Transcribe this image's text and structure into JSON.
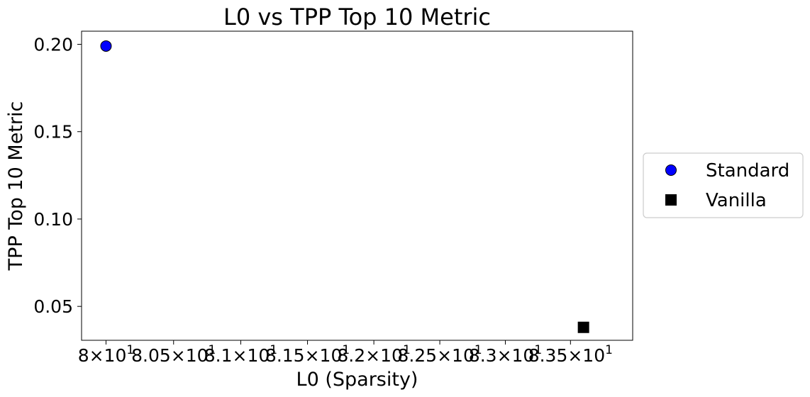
{
  "chart_data": {
    "type": "scatter",
    "title": "L0 vs TPP Top 10 Metric",
    "xlabel": "L0 (Sparsity)",
    "ylabel": "TPP Top 10 Metric",
    "xscale": "log",
    "xlim": [
      79.82,
      83.98
    ],
    "ylim": [
      0.0306,
      0.2075
    ],
    "grid": false,
    "legend_position": "outside-right",
    "x_ticks": [
      {
        "value": 80.0,
        "base": "8",
        "exp": "1"
      },
      {
        "value": 80.5,
        "base": "8.05",
        "exp": "1"
      },
      {
        "value": 81.0,
        "base": "8.1",
        "exp": "1"
      },
      {
        "value": 81.5,
        "base": "8.15",
        "exp": "1"
      },
      {
        "value": 82.0,
        "base": "8.2",
        "exp": "1"
      },
      {
        "value": 82.5,
        "base": "8.25",
        "exp": "1"
      },
      {
        "value": 83.0,
        "base": "8.3",
        "exp": "1"
      },
      {
        "value": 83.5,
        "base": "8.35",
        "exp": "1"
      }
    ],
    "y_ticks": [
      {
        "value": 0.05,
        "label": "0.05"
      },
      {
        "value": 0.1,
        "label": "0.10"
      },
      {
        "value": 0.15,
        "label": "0.15"
      },
      {
        "value": 0.2,
        "label": "0.20"
      }
    ],
    "series": [
      {
        "name": "Standard",
        "marker": "circle",
        "color": "#0000ff",
        "edge_color": "#000000",
        "points": [
          {
            "x": 80.0,
            "y": 0.199
          }
        ]
      },
      {
        "name": "Vanilla",
        "marker": "square",
        "color": "#000000",
        "edge_color": "#000000",
        "points": [
          {
            "x": 83.6,
            "y": 0.038
          }
        ]
      }
    ]
  }
}
